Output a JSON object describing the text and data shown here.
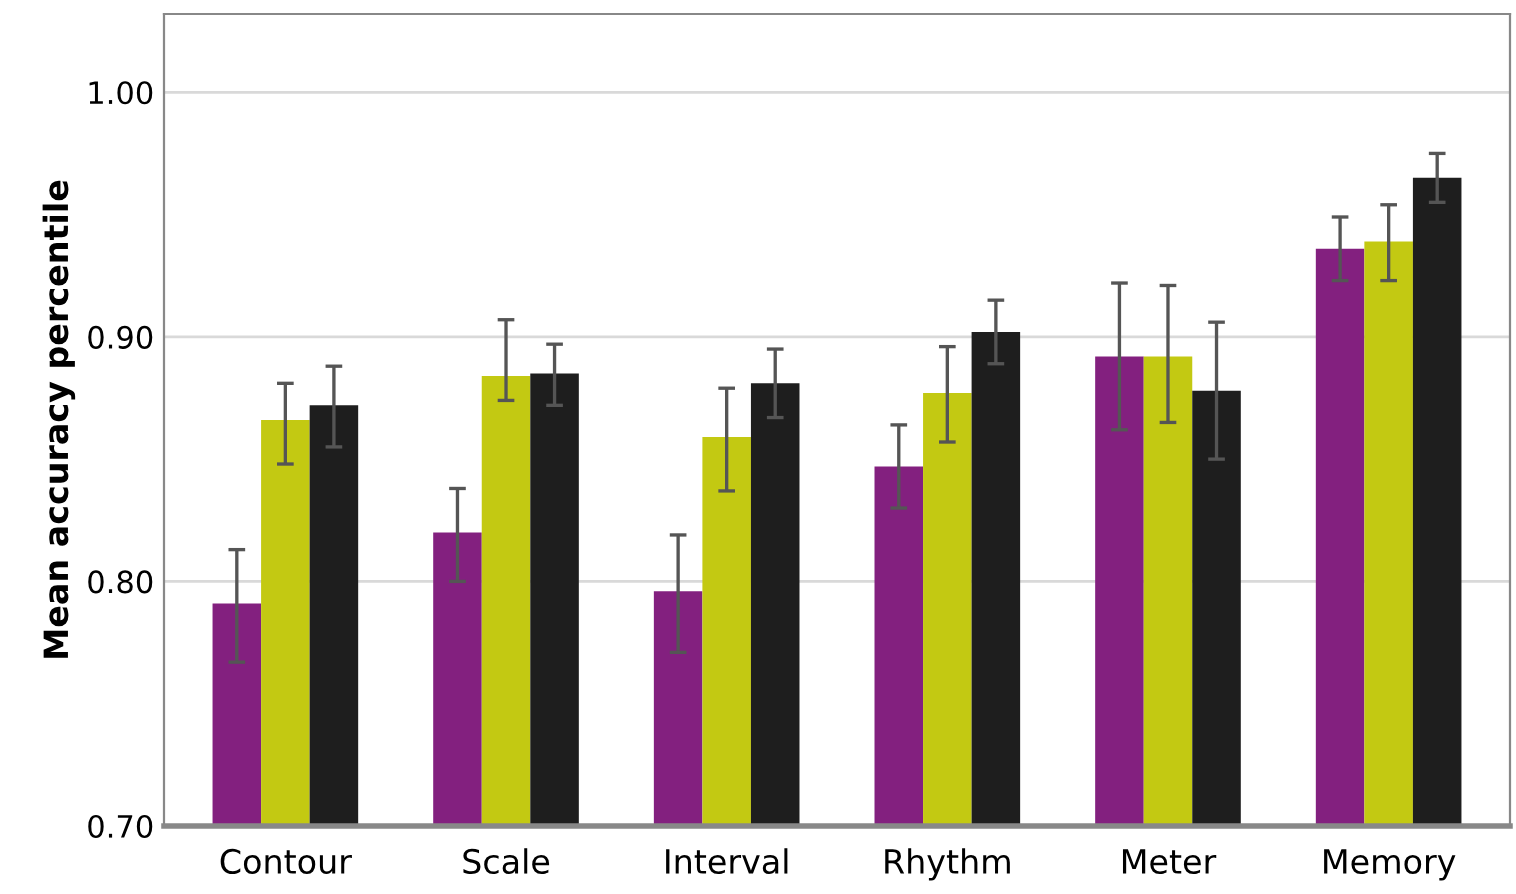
{
  "chart_data": {
    "type": "bar",
    "ylabel": "Mean accuracy percentile",
    "categories": [
      "Contour",
      "Scale",
      "Interval",
      "Rhythm",
      "Meter",
      "Memory"
    ],
    "series": [
      {
        "color": "#83207f",
        "values": [
          0.791,
          0.82,
          0.796,
          0.847,
          0.892,
          0.936
        ],
        "errors": [
          [
            0.767,
            0.813
          ],
          [
            0.8,
            0.838
          ],
          [
            0.771,
            0.819
          ],
          [
            0.83,
            0.864
          ],
          [
            0.862,
            0.922
          ],
          [
            0.923,
            0.949
          ]
        ]
      },
      {
        "color": "#c3c912",
        "values": [
          0.866,
          0.884,
          0.859,
          0.877,
          0.892,
          0.939
        ],
        "errors": [
          [
            0.848,
            0.881
          ],
          [
            0.874,
            0.907
          ],
          [
            0.837,
            0.879
          ],
          [
            0.857,
            0.896
          ],
          [
            0.865,
            0.921
          ],
          [
            0.923,
            0.954
          ]
        ]
      },
      {
        "color": "#1e1e1e",
        "values": [
          0.872,
          0.885,
          0.881,
          0.902,
          0.878,
          0.965
        ],
        "errors": [
          [
            0.855,
            0.888
          ],
          [
            0.872,
            0.897
          ],
          [
            0.867,
            0.895
          ],
          [
            0.889,
            0.915
          ],
          [
            0.85,
            0.906
          ],
          [
            0.955,
            0.975
          ]
        ]
      }
    ],
    "ylim": [
      0.7,
      1.032
    ],
    "yticks": [
      {
        "value": 0.7,
        "label": "0.70"
      },
      {
        "value": 0.8,
        "label": "0.80"
      },
      {
        "value": 0.9,
        "label": "0.90"
      },
      {
        "value": 1.0,
        "label": "1.00"
      }
    ],
    "grid": "y"
  }
}
